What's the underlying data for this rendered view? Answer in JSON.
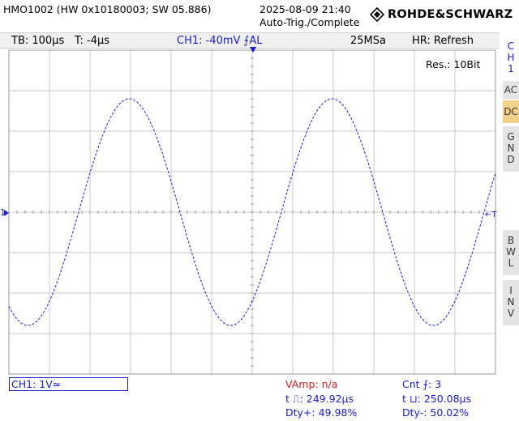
{
  "header": {
    "model": "HMO1002 (HW 0x10180003; SW 05.886)",
    "datetime": "2025-08-09 21:40",
    "trigger_status": "Auto-Trig./Complete",
    "brand": "ROHDE&SCHWARZ"
  },
  "toolbar": {
    "timebase": "TB: 100µs",
    "trigger_position": "T: -4µs",
    "channel_trigger": "CH1: -40mV ⨍AL",
    "sample_rate": "25MSa",
    "acquisition_mode": "HR: Refresh"
  },
  "display": {
    "resolution": "Res.: 10Bit",
    "ch1_marker": "1",
    "trigger_marker": "←T",
    "trace_color": "#1a1ad0",
    "grid_color": "#c8c8c8",
    "signal": {
      "type": "sine",
      "frequency_hz": 2000,
      "amplitude_div": 2.8,
      "offset_div": 0,
      "phase_at_left_edge_rad": -2.16
    }
  },
  "side_menu": {
    "channel": "CH1",
    "ac": "AC",
    "dc": "DC",
    "gnd": "GND",
    "bwl": "BWL",
    "inv": "INV",
    "active": "DC"
  },
  "channel_setting": "CH1: 1V≃",
  "measurements": {
    "vamp": "VAmp: n/a",
    "cnt": "Cnt ⨍: 3",
    "t_pos": "t ⎍: 249.92µs",
    "t_neg": "t ⊔: 250.08µs",
    "duty_pos": "Dty+: 49.98%",
    "duty_neg": "Dty-: 50.02%"
  }
}
